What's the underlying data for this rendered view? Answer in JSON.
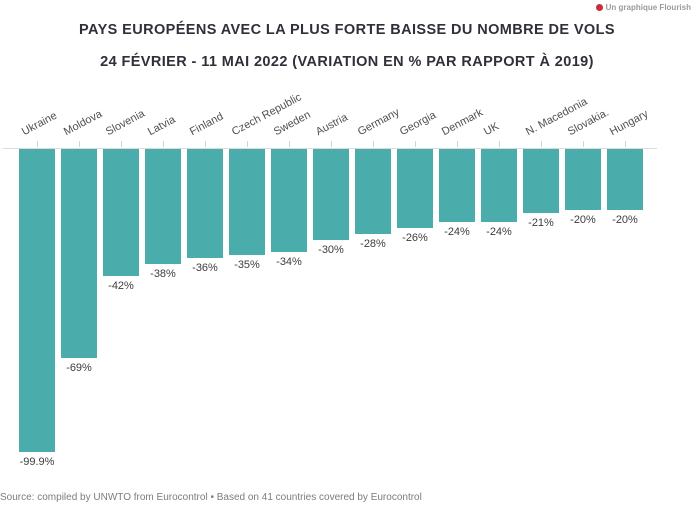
{
  "attribution": {
    "label": "Un graphique Flourish",
    "dot_color": "#c62f36"
  },
  "header": {
    "title_line1": "PAYS EUROPÉENS AVEC LA PLUS FORTE BAISSE DU NOMBRE DE VOLS",
    "title_line2": "24 FÉVRIER - 11 MAI 2022 (VARIATION EN % PAR RAPPORT À 2019)"
  },
  "chart_data": {
    "type": "bar",
    "title": "PAYS EUROPÉENS AVEC LA PLUS FORTE BAISSE DU NOMBRE DE VOLS",
    "subtitle": "24 FÉVRIER - 11 MAI 2022 (VARIATION EN % PAR RAPPORT À 2019)",
    "orientation": "vertical-negative",
    "categories": [
      "Ukraine",
      "Moldova",
      "Slovenia",
      "Latvia",
      "Finland",
      "Czech Republic",
      "Sweden",
      "Austria",
      "Germany",
      "Georgia",
      "Denmark",
      "UK",
      "N. Macedonia",
      "Slovakia.",
      "Hungary"
    ],
    "values": [
      -99.9,
      -69,
      -42,
      -38,
      -36,
      -35,
      -34,
      -30,
      -28,
      -26,
      -24,
      -24,
      -21,
      -20,
      -20
    ],
    "labels": [
      "-99.9%",
      "-69%",
      "-42%",
      "-38%",
      "-36%",
      "-35%",
      "-34%",
      "-30%",
      "-28%",
      "-26%",
      "-24%",
      "-24%",
      "-21%",
      "-20%",
      "-20%"
    ],
    "ylim": [
      -100,
      0
    ],
    "grid": false,
    "legend": "none",
    "bar_color": "#4aadac",
    "value_label_position": "below-bar",
    "category_label_rotation_deg": -28
  },
  "footer": {
    "source": "Source: compiled by UNWTO from Eurocontrol • Based on 41 countries covered by Eurocontrol"
  }
}
